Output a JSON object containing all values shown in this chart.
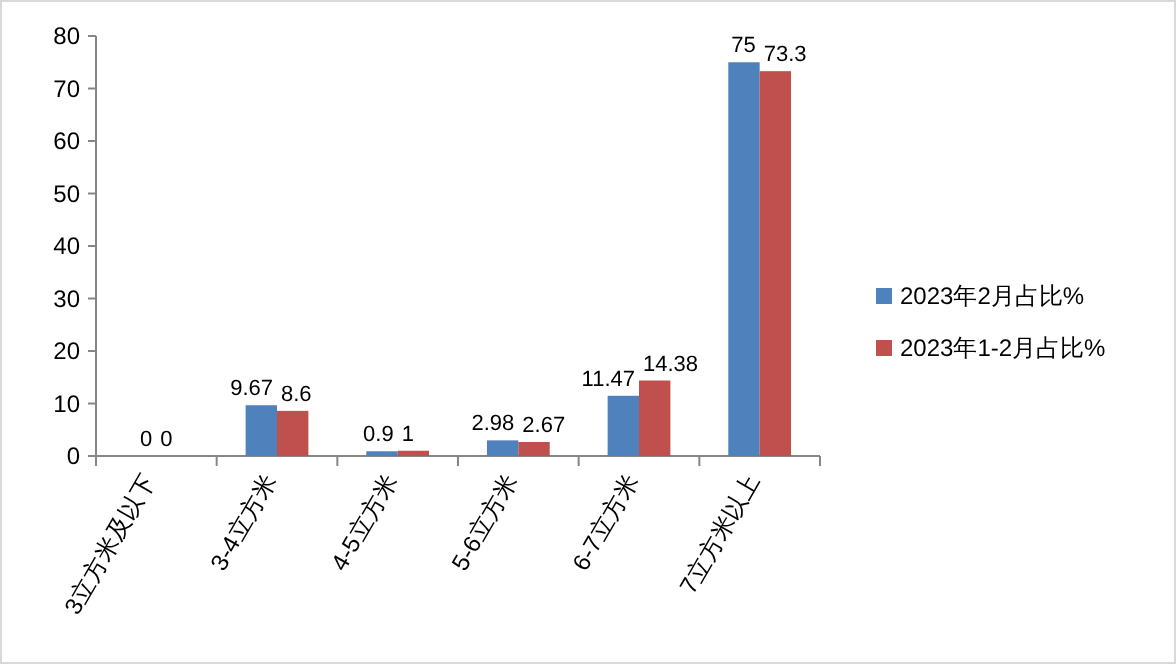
{
  "chart_data": {
    "type": "bar",
    "categories": [
      "3立方米及以下",
      "3-4立方米",
      "4-5立方米",
      "5-6立方米",
      "6-7立方米",
      "7立方米以上"
    ],
    "series": [
      {
        "name": "2023年2月占比%",
        "color": "#4f81bd",
        "values": [
          0,
          9.67,
          0.9,
          2.98,
          11.47,
          75
        ]
      },
      {
        "name": "2023年1-2月占比%",
        "color": "#c0504d",
        "values": [
          0,
          8.6,
          1,
          2.67,
          14.38,
          73.3
        ]
      }
    ],
    "ylim": [
      0,
      80
    ],
    "yticks": [
      0,
      10,
      20,
      30,
      40,
      50,
      60,
      70,
      80
    ],
    "data_labels": true,
    "legend": "right",
    "grid": false
  }
}
